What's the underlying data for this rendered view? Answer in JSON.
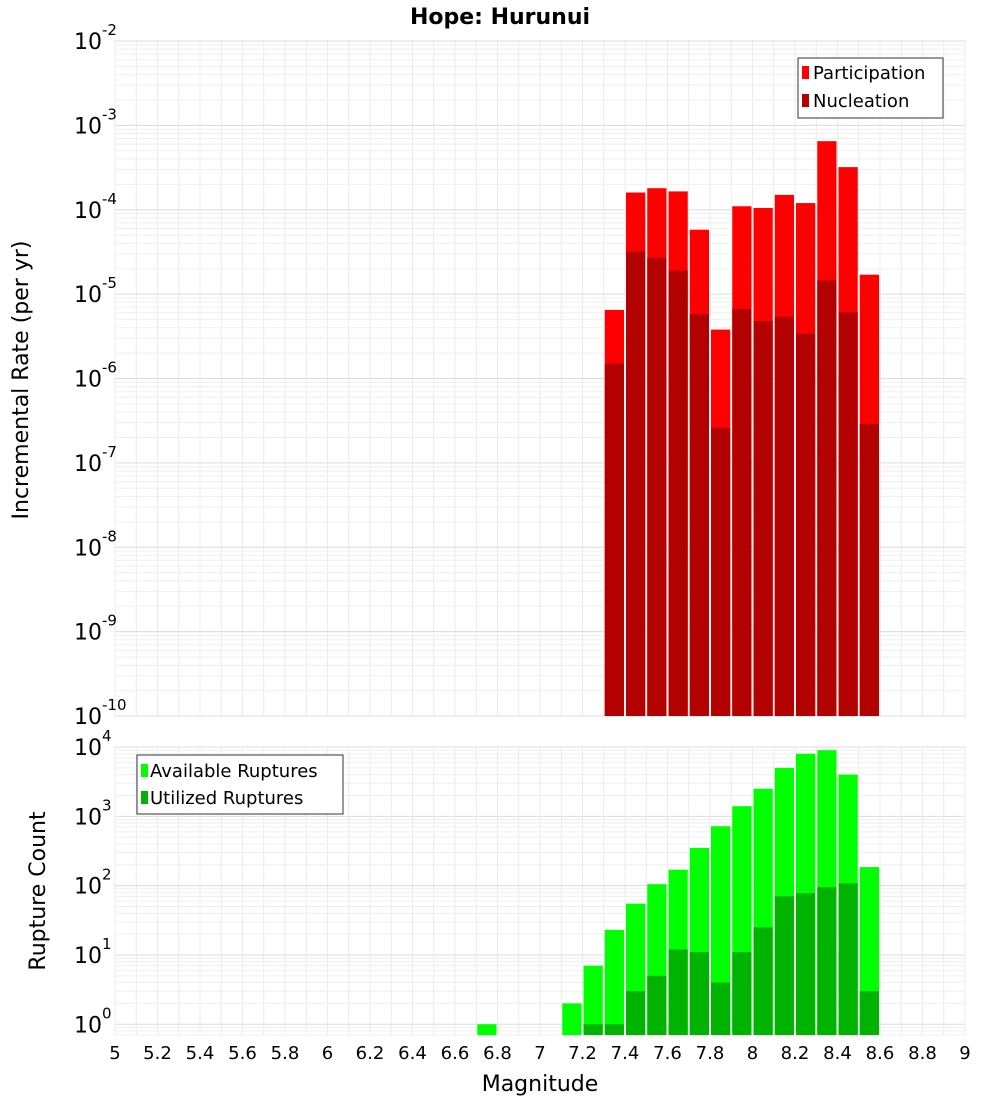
{
  "chart_data": [
    {
      "type": "bar",
      "title": "Hope: Hurunui",
      "xlabel": "Magnitude",
      "ylabel": "Incremental Rate (per yr)",
      "yscale": "log",
      "ylim": [
        1e-10,
        0.01
      ],
      "xlim": [
        5,
        9
      ],
      "grid": true,
      "legend_position": "top-right",
      "x": [
        7.35,
        7.45,
        7.55,
        7.65,
        7.75,
        7.85,
        7.95,
        8.05,
        8.15,
        8.25,
        8.35,
        8.45,
        8.55
      ],
      "series": [
        {
          "name": "Participation",
          "color": "#ff0000",
          "values": [
            6.5e-06,
            0.00016,
            0.00018,
            0.000165,
            5.8e-05,
            3.8e-06,
            0.00011,
            0.000105,
            0.00015,
            0.00012,
            0.00065,
            0.00032,
            1.7e-05
          ]
        },
        {
          "name": "Nucleation",
          "color": "#b30000",
          "values": [
            1.5e-06,
            3.2e-05,
            2.7e-05,
            1.9e-05,
            5.8e-06,
            2.6e-07,
            6.7e-06,
            4.8e-06,
            5.4e-06,
            3.4e-06,
            1.45e-05,
            6.1e-06,
            2.9e-07
          ]
        }
      ]
    },
    {
      "type": "bar",
      "xlabel": "Magnitude",
      "ylabel": "Rupture Count",
      "yscale": "log",
      "ylim": [
        0.7,
        10000
      ],
      "xlim": [
        5,
        9
      ],
      "grid": true,
      "legend_position": "top-left",
      "x": [
        6.75,
        7.15,
        7.25,
        7.35,
        7.45,
        7.55,
        7.65,
        7.75,
        7.85,
        7.95,
        8.05,
        8.15,
        8.25,
        8.35,
        8.45,
        8.55
      ],
      "series": [
        {
          "name": "Available Ruptures",
          "color": "#00ff00",
          "values": [
            1,
            2,
            7,
            23,
            55,
            105,
            170,
            350,
            720,
            1400,
            2500,
            5000,
            8000,
            9000,
            4000,
            185
          ]
        },
        {
          "name": "Utilized Ruptures",
          "color": "#00b300",
          "values": [
            0,
            0,
            1,
            1,
            3,
            5,
            12,
            11,
            4,
            11,
            25,
            70,
            78,
            95,
            108,
            3
          ]
        }
      ]
    }
  ],
  "x_ticks": [
    "5",
    "5.2",
    "5.4",
    "5.6",
    "5.8",
    "6",
    "6.2",
    "6.4",
    "6.6",
    "6.8",
    "7",
    "7.2",
    "7.4",
    "7.6",
    "7.8",
    "8",
    "8.2",
    "8.4",
    "8.6",
    "8.8",
    "9"
  ],
  "top_y_ticks": [
    {
      "base": "10",
      "exp": "-2"
    },
    {
      "base": "10",
      "exp": "-3"
    },
    {
      "base": "10",
      "exp": "-4"
    },
    {
      "base": "10",
      "exp": "-5"
    },
    {
      "base": "10",
      "exp": "-6"
    },
    {
      "base": "10",
      "exp": "-7"
    },
    {
      "base": "10",
      "exp": "-8"
    },
    {
      "base": "10",
      "exp": "-9"
    },
    {
      "base": "10",
      "exp": "-10"
    }
  ],
  "bottom_y_ticks": [
    {
      "base": "10",
      "exp": "4"
    },
    {
      "base": "10",
      "exp": "3"
    },
    {
      "base": "10",
      "exp": "2"
    },
    {
      "base": "10",
      "exp": "1"
    },
    {
      "base": "10",
      "exp": "0"
    }
  ]
}
